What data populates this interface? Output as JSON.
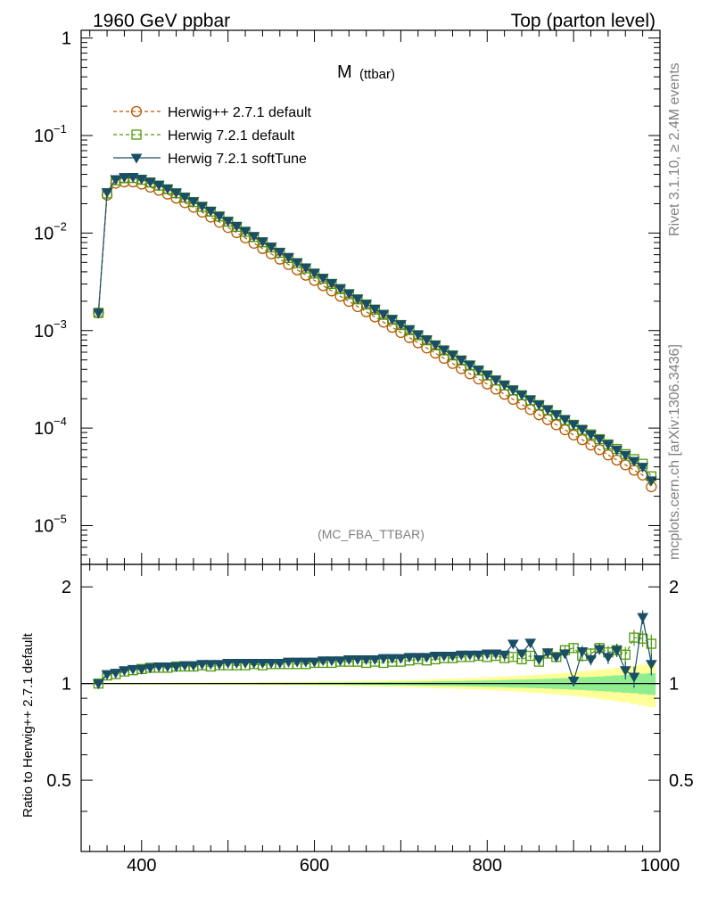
{
  "header": {
    "left": "1960 GeV ppbar",
    "right": "Top (parton level)",
    "side_top": "Rivet 3.1.10, ≥ 2.4M events",
    "side_bottom": "mcplots.cern.ch [arXiv:1306.3436]",
    "analysis": "(MC_FBA_TTBAR)"
  },
  "chart_data": {
    "type": "line",
    "title_main": "M",
    "title_sub": "(ttbar)",
    "x": [
      350,
      360,
      370,
      380,
      390,
      400,
      410,
      420,
      430,
      440,
      450,
      460,
      470,
      480,
      490,
      500,
      510,
      520,
      530,
      540,
      550,
      560,
      570,
      580,
      590,
      600,
      610,
      620,
      630,
      640,
      650,
      660,
      670,
      680,
      690,
      700,
      710,
      720,
      730,
      740,
      750,
      760,
      770,
      780,
      790,
      800,
      810,
      820,
      830,
      840,
      850,
      860,
      870,
      880,
      890,
      900,
      910,
      920,
      930,
      940,
      950,
      960,
      970,
      980,
      990
    ],
    "xlim": [
      330,
      1000
    ],
    "xticks": [
      "400",
      "600",
      "800",
      "1000"
    ],
    "xtick_values": [
      400,
      600,
      800,
      1000
    ],
    "main_panel": {
      "yscale": "log",
      "ylim": [
        4e-06,
        1.2
      ],
      "yticks": [
        {
          "value": 1,
          "label": "1",
          "base": "",
          "exp": ""
        },
        {
          "value": 0.1,
          "label": "",
          "base": "10",
          "exp": "−1"
        },
        {
          "value": 0.01,
          "label": "",
          "base": "10",
          "exp": "−2"
        },
        {
          "value": 0.001,
          "label": "",
          "base": "10",
          "exp": "−3"
        },
        {
          "value": 0.0001,
          "label": "",
          "base": "10",
          "exp": "−4"
        },
        {
          "value": 1e-05,
          "label": "",
          "base": "10",
          "exp": "−5"
        }
      ]
    },
    "ratio_panel": {
      "ylabel": "Ratio to Herwig++ 2.7.1 default",
      "ylim": [
        0.3,
        2.35
      ],
      "yticks": [
        {
          "value": 0.5,
          "label": "0.5"
        },
        {
          "value": 1,
          "label": "1"
        },
        {
          "value": 2,
          "label": "2"
        }
      ]
    },
    "legend_placement": "top-left",
    "series": [
      {
        "name": "Herwig++ 2.7.1 default",
        "color": "#b35a00",
        "marker": "circle",
        "linestyle": "dashed",
        "values": [
          0.00152,
          0.0245,
          0.0325,
          0.0335,
          0.0335,
          0.0318,
          0.0296,
          0.0275,
          0.0251,
          0.0228,
          0.0205,
          0.0184,
          0.0164,
          0.0146,
          0.0129,
          0.0114,
          0.0101,
          0.00892,
          0.00787,
          0.00694,
          0.00612,
          0.0054,
          0.00476,
          0.0042,
          0.0037,
          0.00327,
          0.00289,
          0.00255,
          0.00225,
          0.00199,
          0.00176,
          0.00156,
          0.00138,
          0.00122,
          0.00108,
          0.000956,
          0.000846,
          0.000749,
          0.000663,
          0.000587,
          0.000519,
          0.00046,
          0.000407,
          0.00036,
          0.000319,
          0.000283,
          0.000251,
          0.000222,
          0.000197,
          0.000175,
          0.000155,
          0.000137,
          0.000122,
          0.000108,
          9.6e-05,
          8.5e-05,
          7.6e-05,
          6.7e-05,
          6e-05,
          5.3e-05,
          4.7e-05,
          4.2e-05,
          3.7e-05,
          3.3e-05,
          2.5e-05
        ],
        "ratio": [
          1,
          1,
          1,
          1,
          1,
          1,
          1,
          1,
          1,
          1,
          1,
          1,
          1,
          1,
          1,
          1,
          1,
          1,
          1,
          1,
          1,
          1,
          1,
          1,
          1,
          1,
          1,
          1,
          1,
          1,
          1,
          1,
          1,
          1,
          1,
          1,
          1,
          1,
          1,
          1,
          1,
          1,
          1,
          1,
          1,
          1,
          1,
          1,
          1,
          1,
          1,
          1,
          1,
          1,
          1,
          1,
          1,
          1,
          1,
          1,
          1,
          1,
          1,
          1,
          1
        ]
      },
      {
        "name": "Herwig 7.2.1 default",
        "color": "#4e9a06",
        "marker": "square",
        "linestyle": "dashed",
        "values": [
          0.00152,
          0.0255,
          0.0347,
          0.0365,
          0.0367,
          0.0352,
          0.033,
          0.0307,
          0.0281,
          0.0256,
          0.0231,
          0.0208,
          0.0186,
          0.0166,
          0.0148,
          0.0131,
          0.0116,
          0.0103,
          0.00911,
          0.00805,
          0.00711,
          0.00628,
          0.00555,
          0.00491,
          0.00434,
          0.00384,
          0.0034,
          0.00301,
          0.00266,
          0.00236,
          0.00209,
          0.00185,
          0.00164,
          0.00145,
          0.00129,
          0.00114,
          0.00101,
          0.000896,
          0.000795,
          0.000705,
          0.000626,
          0.000556,
          0.000494,
          0.000439,
          0.00039,
          0.000347,
          0.000308,
          0.000274,
          0.000244,
          0.000217,
          0.000193,
          0.000172,
          0.000153,
          0.000136,
          0.000121,
          0.000108,
          9.6e-05,
          8.6e-05,
          7.7e-05,
          6.8e-05,
          6.1e-05,
          5.4e-05,
          4.8e-05,
          4.3e-05,
          3.2e-05
        ],
        "ratio": [
          1.0,
          1.06,
          1.07,
          1.09,
          1.1,
          1.11,
          1.12,
          1.12,
          1.12,
          1.13,
          1.13,
          1.13,
          1.14,
          1.13,
          1.14,
          1.14,
          1.14,
          1.14,
          1.15,
          1.14,
          1.15,
          1.15,
          1.15,
          1.15,
          1.15,
          1.16,
          1.16,
          1.16,
          1.17,
          1.17,
          1.17,
          1.16,
          1.17,
          1.16,
          1.17,
          1.17,
          1.18,
          1.19,
          1.18,
          1.19,
          1.2,
          1.2,
          1.21,
          1.21,
          1.22,
          1.21,
          1.22,
          1.2,
          1.21,
          1.19,
          1.22,
          1.17,
          1.24,
          1.21,
          1.27,
          1.29,
          1.22,
          1.24,
          1.29,
          1.25,
          1.27,
          1.23,
          1.39,
          1.38,
          1.33
        ],
        "ratio_err": [
          0.01,
          0.01,
          0.01,
          0.01,
          0.01,
          0.01,
          0.01,
          0.01,
          0.01,
          0.01,
          0.01,
          0.01,
          0.01,
          0.01,
          0.01,
          0.01,
          0.01,
          0.01,
          0.01,
          0.01,
          0.01,
          0.01,
          0.01,
          0.01,
          0.01,
          0.01,
          0.01,
          0.01,
          0.01,
          0.01,
          0.01,
          0.01,
          0.01,
          0.01,
          0.01,
          0.01,
          0.01,
          0.01,
          0.01,
          0.01,
          0.02,
          0.02,
          0.02,
          0.02,
          0.02,
          0.02,
          0.03,
          0.03,
          0.03,
          0.03,
          0.03,
          0.03,
          0.04,
          0.04,
          0.04,
          0.04,
          0.05,
          0.05,
          0.05,
          0.06,
          0.06,
          0.07,
          0.08,
          0.08,
          0.09
        ]
      },
      {
        "name": "Herwig 7.2.1 softTune",
        "color": "#1a4e66",
        "marker": "triangle-down",
        "linestyle": "solid",
        "values": [
          0.00152,
          0.0262,
          0.0357,
          0.0375,
          0.0376,
          0.0359,
          0.0336,
          0.0312,
          0.0286,
          0.026,
          0.0235,
          0.0211,
          0.0189,
          0.0169,
          0.015,
          0.0133,
          0.0118,
          0.0105,
          0.00928,
          0.0082,
          0.00724,
          0.0064,
          0.00566,
          0.005,
          0.00442,
          0.00391,
          0.00346,
          0.00306,
          0.00271,
          0.0024,
          0.00212,
          0.00188,
          0.00167,
          0.00148,
          0.00131,
          0.00116,
          0.00103,
          0.000911,
          0.000808,
          0.000717,
          0.000636,
          0.000565,
          0.000502,
          0.000446,
          0.000396,
          0.000352,
          0.000313,
          0.000278,
          0.000247,
          0.00022,
          0.000196,
          0.000174,
          0.000155,
          0.000138,
          0.000123,
          0.000109,
          9.7e-05,
          8.6e-05,
          7.7e-05,
          6.8e-05,
          6e-05,
          5.3e-05,
          4.6e-05,
          4e-05,
          2.9e-05
        ],
        "ratio": [
          1.0,
          1.07,
          1.08,
          1.1,
          1.11,
          1.11,
          1.12,
          1.13,
          1.13,
          1.13,
          1.14,
          1.14,
          1.15,
          1.15,
          1.15,
          1.16,
          1.16,
          1.16,
          1.16,
          1.16,
          1.16,
          1.16,
          1.17,
          1.17,
          1.17,
          1.17,
          1.18,
          1.18,
          1.18,
          1.19,
          1.19,
          1.19,
          1.19,
          1.2,
          1.2,
          1.2,
          1.21,
          1.21,
          1.21,
          1.22,
          1.22,
          1.22,
          1.23,
          1.23,
          1.23,
          1.24,
          1.24,
          1.23,
          1.33,
          1.24,
          1.34,
          1.19,
          1.25,
          1.21,
          1.24,
          1.02,
          1.26,
          1.19,
          1.28,
          1.21,
          1.27,
          1.1,
          1.05,
          1.61,
          1.15
        ],
        "ratio_err": [
          0.01,
          0.01,
          0.01,
          0.01,
          0.01,
          0.01,
          0.01,
          0.01,
          0.01,
          0.01,
          0.01,
          0.01,
          0.01,
          0.01,
          0.01,
          0.01,
          0.01,
          0.01,
          0.01,
          0.01,
          0.01,
          0.01,
          0.01,
          0.01,
          0.01,
          0.01,
          0.01,
          0.01,
          0.01,
          0.01,
          0.01,
          0.01,
          0.01,
          0.01,
          0.01,
          0.01,
          0.01,
          0.01,
          0.01,
          0.01,
          0.02,
          0.02,
          0.02,
          0.02,
          0.02,
          0.02,
          0.03,
          0.03,
          0.03,
          0.03,
          0.03,
          0.03,
          0.04,
          0.04,
          0.04,
          0.04,
          0.05,
          0.05,
          0.05,
          0.06,
          0.06,
          0.07,
          0.08,
          0.08,
          0.09
        ]
      }
    ],
    "bands": {
      "green_color": "#90ee90",
      "yellow_color": "#ffff99",
      "green_halfwidth": [
        0.003,
        0.003,
        0.003,
        0.003,
        0.003,
        0.003,
        0.003,
        0.004,
        0.004,
        0.004,
        0.004,
        0.004,
        0.004,
        0.004,
        0.005,
        0.005,
        0.005,
        0.005,
        0.005,
        0.006,
        0.006,
        0.006,
        0.007,
        0.007,
        0.007,
        0.007,
        0.008,
        0.008,
        0.008,
        0.009,
        0.009,
        0.01,
        0.01,
        0.011,
        0.012,
        0.012,
        0.013,
        0.014,
        0.015,
        0.016,
        0.017,
        0.018,
        0.019,
        0.02,
        0.021,
        0.023,
        0.024,
        0.026,
        0.028,
        0.029,
        0.031,
        0.033,
        0.035,
        0.038,
        0.04,
        0.043,
        0.046,
        0.049,
        0.052,
        0.056,
        0.06,
        0.064,
        0.068,
        0.073,
        0.078
      ],
      "yellow_halfwidth": [
        0.006,
        0.006,
        0.006,
        0.006,
        0.006,
        0.007,
        0.007,
        0.007,
        0.007,
        0.008,
        0.008,
        0.008,
        0.008,
        0.009,
        0.009,
        0.009,
        0.01,
        0.01,
        0.011,
        0.011,
        0.012,
        0.012,
        0.013,
        0.013,
        0.014,
        0.015,
        0.016,
        0.016,
        0.017,
        0.018,
        0.019,
        0.02,
        0.021,
        0.022,
        0.024,
        0.025,
        0.026,
        0.028,
        0.03,
        0.032,
        0.034,
        0.036,
        0.038,
        0.04,
        0.043,
        0.045,
        0.048,
        0.051,
        0.055,
        0.058,
        0.062,
        0.066,
        0.07,
        0.075,
        0.08,
        0.085,
        0.091,
        0.097,
        0.104,
        0.111,
        0.119,
        0.127,
        0.136,
        0.146,
        0.156
      ]
    }
  }
}
